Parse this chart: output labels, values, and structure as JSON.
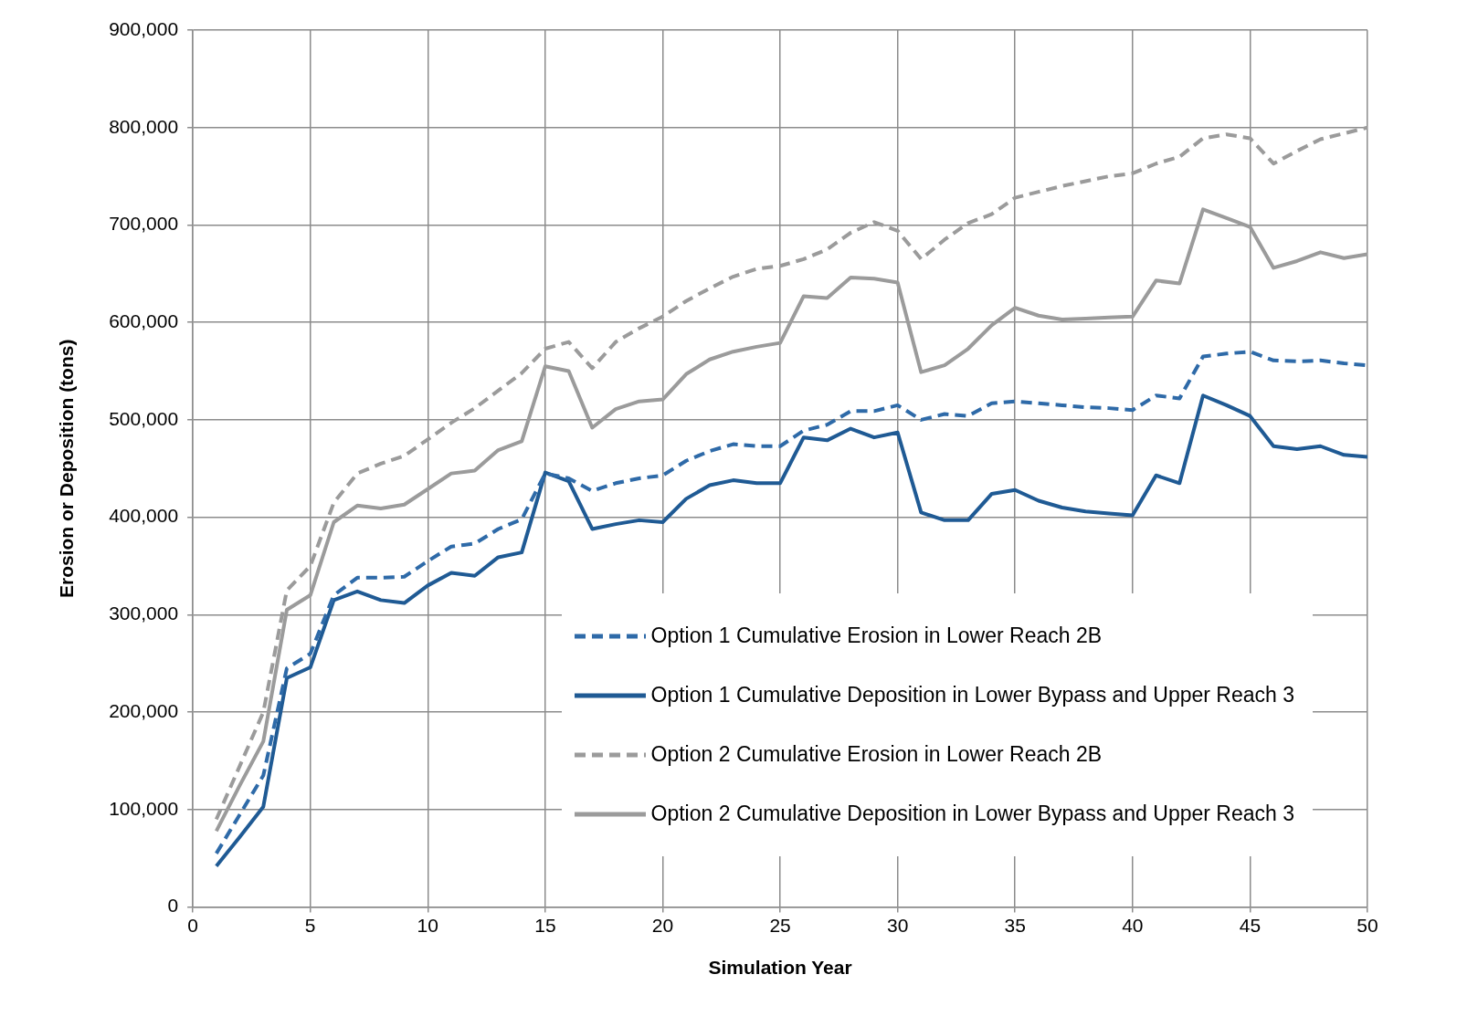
{
  "chart_data": {
    "type": "line",
    "xlabel": "Simulation Year",
    "ylabel": "Erosion or Deposition (tons)",
    "xlim": [
      0,
      50
    ],
    "xticks": [
      0,
      5,
      10,
      15,
      20,
      25,
      30,
      35,
      40,
      45,
      50
    ],
    "ylim": [
      0,
      900000
    ],
    "yticks": [
      0,
      {
        "value": 100000,
        "label": "100,000"
      },
      {
        "value": 200000,
        "label": "200,000"
      },
      {
        "value": 300000,
        "label": "300,000"
      },
      {
        "value": 400000,
        "label": "400,000"
      },
      {
        "value": 500000,
        "label": "500,000"
      },
      {
        "value": 600000,
        "label": "600,000"
      },
      {
        "value": 700000,
        "label": "700,000"
      },
      {
        "value": 800000,
        "label": "800,000"
      },
      {
        "value": 900000,
        "label": "900,000"
      }
    ],
    "grid": true,
    "legend": "bottom right",
    "marker": "none",
    "x": [
      1,
      2,
      3,
      4,
      5,
      6,
      7,
      8,
      9,
      10,
      11,
      12,
      13,
      14,
      15,
      16,
      17,
      18,
      19,
      20,
      21,
      22,
      23,
      24,
      25,
      26,
      27,
      28,
      29,
      30,
      31,
      32,
      33,
      34,
      35,
      36,
      37,
      38,
      39,
      40,
      41,
      42,
      43,
      44,
      45,
      46,
      47,
      48,
      49,
      50
    ],
    "series": [
      {
        "name": "Option 1 Cumulative Erosion in Lower Reach 2B",
        "color": "#2e6aa8",
        "line_style": "dashed",
        "values": [
          55000,
          95000,
          135000,
          245000,
          260000,
          320000,
          338000,
          338000,
          339000,
          355000,
          370000,
          373000,
          388000,
          398000,
          445000,
          440000,
          427000,
          435000,
          440000,
          443000,
          458000,
          468000,
          475000,
          473000,
          473000,
          489000,
          495000,
          509000,
          509000,
          515000,
          500000,
          506000,
          504000,
          517000,
          519000,
          517000,
          515000,
          513000,
          512000,
          510000,
          525000,
          522000,
          565000,
          568000,
          570000,
          561000,
          560000,
          561000,
          558000,
          556000
        ]
      },
      {
        "name": "Option 1 Cumulative Deposition in Lower Bypass and Upper Reach 3",
        "color": "#1f5a94",
        "line_style": "solid",
        "values": [
          42000,
          72000,
          103000,
          235000,
          246000,
          315000,
          324000,
          315000,
          312000,
          330000,
          343000,
          340000,
          359000,
          364000,
          446000,
          437000,
          388000,
          393000,
          397000,
          395000,
          419000,
          433000,
          438000,
          435000,
          435000,
          482000,
          479000,
          491000,
          482000,
          487000,
          405000,
          397000,
          397000,
          424000,
          428000,
          417000,
          410000,
          406000,
          404000,
          402000,
          443000,
          435000,
          525000,
          515000,
          504000,
          473000,
          470000,
          473000,
          464000,
          462000
        ]
      },
      {
        "name": "Option 2 Cumulative Erosion in Lower Reach 2B",
        "color": "#9b9b9b",
        "line_style": "dashed",
        "values": [
          90000,
          145000,
          200000,
          325000,
          350000,
          415000,
          445000,
          455000,
          463000,
          480000,
          497000,
          512000,
          530000,
          548000,
          573000,
          580000,
          553000,
          580000,
          594000,
          606000,
          622000,
          635000,
          647000,
          655000,
          658000,
          665000,
          675000,
          692000,
          703000,
          694000,
          665000,
          685000,
          702000,
          711000,
          728000,
          734000,
          740000,
          745000,
          750000,
          753000,
          763000,
          770000,
          789000,
          793000,
          789000,
          763000,
          776000,
          788000,
          794000,
          800000
        ]
      },
      {
        "name": "Option 2 Cumulative Deposition in Lower Bypass and Upper Reach 3",
        "color": "#9b9b9b",
        "line_style": "solid",
        "values": [
          78000,
          125000,
          170000,
          305000,
          320000,
          395000,
          412000,
          409000,
          413000,
          429000,
          445000,
          448000,
          469000,
          478000,
          555000,
          550000,
          492000,
          511000,
          519000,
          521000,
          547000,
          562000,
          570000,
          575000,
          579000,
          627000,
          625000,
          646000,
          645000,
          641000,
          549000,
          556000,
          573000,
          597000,
          615000,
          607000,
          603000,
          604000,
          605000,
          606000,
          643000,
          640000,
          716000,
          707000,
          698000,
          656000,
          663000,
          672000,
          666000,
          670000
        ]
      }
    ]
  }
}
